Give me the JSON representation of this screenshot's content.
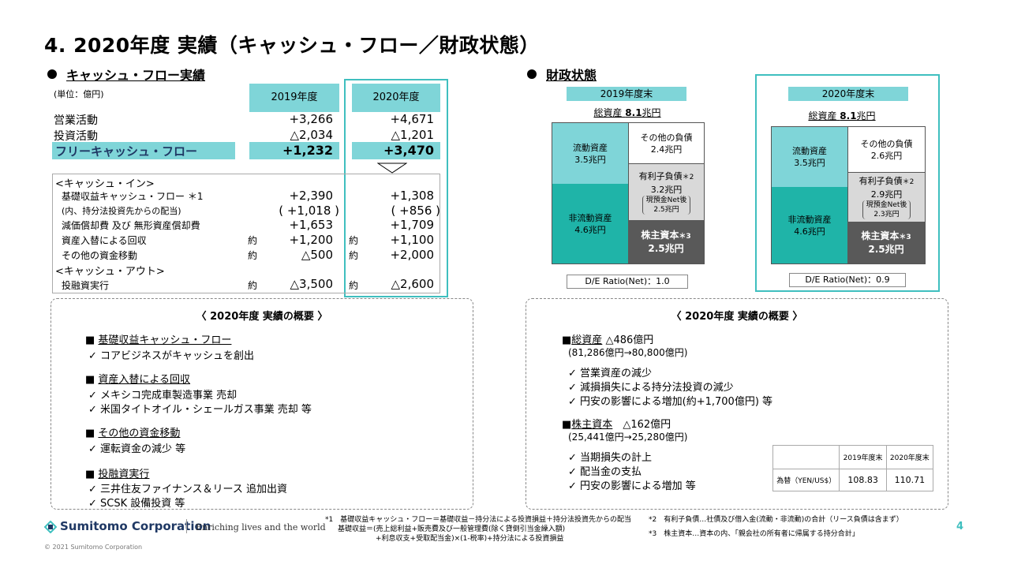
{
  "title": "4. 2020年度 実績（キャッシュ・フロー／財政状態）",
  "left": {
    "section": "キャッシュ・フロー実績",
    "unit": "(単位：億円)",
    "col_2019": "2019年度",
    "col_2020": "2020年度",
    "rows": [
      {
        "label": "営業活動",
        "v2019": "+3,266",
        "v2020": "+4,671"
      },
      {
        "label": "投資活動",
        "v2019": "△2,034",
        "v2020": "△1,201"
      }
    ],
    "fcf": {
      "label": "フリーキャッシュ・フロー",
      "v2019": "+1,232",
      "v2020": "+3,470"
    },
    "cash_in": "<キャッシュ・イン>",
    "in_rows": [
      {
        "label": "基礎収益キャッシュ・フロー ＊1",
        "p19": "",
        "v2019": "+2,390",
        "p20": "",
        "v2020": "+1,308"
      },
      {
        "label": "(内、持分法投資先からの配当)",
        "p19": "",
        "v2019": "( +1,018 )",
        "p20": "",
        "v2020": "( +856 )"
      },
      {
        "label": "減価償却費 及び 無形資産償却費",
        "p19": "",
        "v2019": "+1,653",
        "p20": "",
        "v2020": "+1,709"
      },
      {
        "label": "資産入替による回収",
        "p19": "約",
        "v2019": "+1,200",
        "p20": "約",
        "v2020": "+1,100"
      },
      {
        "label": "その他の資金移動",
        "p19": "約",
        "v2019": "△500",
        "p20": "約",
        "v2020": "+2,000"
      }
    ],
    "cash_out": "<キャッシュ・アウト>",
    "out_rows": [
      {
        "label": "投融資実行",
        "p19": "約",
        "v2019": "△3,500",
        "p20": "約",
        "v2020": "△2,600"
      }
    ],
    "summary": {
      "title": "〈 2020年度 実績の概要 〉",
      "groups": [
        {
          "head": "基礎収益キャッシュ・フロー",
          "items": [
            "✓ コアビジネスがキャッシュを創出"
          ]
        },
        {
          "head": "資産入替による回収",
          "items": [
            "✓ メキシコ完成車製造事業 売却",
            "✓ 米国タイトオイル・シェールガス事業 売却 等"
          ]
        },
        {
          "head": "その他の資金移動",
          "items": [
            "✓ 運転資金の減少 等"
          ]
        },
        {
          "head": "投融資実行",
          "items": [
            "✓ 三井住友ファイナンス＆リース 追加出資",
            "✓ SCSK 設備投資 等"
          ]
        }
      ]
    }
  },
  "right": {
    "section": "財政状態",
    "y2019": {
      "header": "2019年度末",
      "total_label": "総資産",
      "total_value": "8.1",
      "total_unit": "兆円",
      "current": "流動資産",
      "current_v": "3.5兆円",
      "noncurrent": "非流動資産",
      "noncurrent_v": "4.6兆円",
      "other_liab": "その他の負債",
      "other_liab_v": "2.4兆円",
      "debt": "有利子負債",
      "debt_mark": "＊2",
      "debt_v": "3.2兆円",
      "net_label": "現預金Net後",
      "net_v": "2.5兆円",
      "equity": "株主資本",
      "equity_mark": "＊3",
      "equity_v": "2.5兆円",
      "de": "D/E Ratio(Net)：1.0"
    },
    "y2020": {
      "header": "2020年度末",
      "total_label": "総資産",
      "total_value": "8.1",
      "total_unit": "兆円",
      "current": "流動資産",
      "current_v": "3.5兆円",
      "noncurrent": "非流動資産",
      "noncurrent_v": "4.6兆円",
      "other_liab": "その他の負債",
      "other_liab_v": "2.6兆円",
      "debt": "有利子負債",
      "debt_mark": "＊2",
      "debt_v": "2.9兆円",
      "net_label": "現預金Net後",
      "net_v": "2.3兆円",
      "equity": "株主資本",
      "equity_mark": "＊3",
      "equity_v": "2.5兆円",
      "de": "D/E Ratio(Net)：0.9"
    },
    "summary": {
      "title": "〈 2020年度 実績の概要 〉",
      "asset_head": "総資産",
      "asset_change": "△486億円",
      "asset_detail": "(81,286億円→80,800億円)",
      "asset_items": [
        "✓ 営業資産の減少",
        "✓ 減損損失による持分法投資の減少",
        "✓ 円安の影響による増加(約+1,700億円) 等"
      ],
      "equity_head": "株主資本",
      "equity_change": "△162億円",
      "equity_detail": "(25,441億円→25,280億円)",
      "equity_items": [
        "✓ 当期損失の計上",
        "✓ 配当金の支払",
        "✓ 円安の影響による増加 等"
      ]
    },
    "fx": {
      "h2019": "2019年度末",
      "h2020": "2020年度末",
      "label": "為替（YEN/US$）",
      "v2019": "108.83",
      "v2020": "110.71"
    }
  },
  "footnotes": {
    "n1a": "*1　基礎収益キャッシュ・フロー＝基礎収益－持分法による投資損益＋持分法投資先からの配当",
    "n1b": "基礎収益＝(売上総利益+販売費及び一般管理費(除く貸倒引当金繰入額)",
    "n1c": "+利息収支+受取配当金)×(1-税率)+持分法による投資損益",
    "n2": "*2　有利子負債…社債及び借入金(流動・非流動)の合計（リース負債は含まず）",
    "n3": "*3　株主資本…資本の内、「親会社の所有者に帰属する持分合計」"
  },
  "brand": {
    "logo": "Sumitomo Corporation",
    "tagline": "Enriching lives and the world",
    "page": "4",
    "copyright": "© 2021 Sumitomo Corporation"
  },
  "colors": {
    "accent": "#3fbfbf",
    "header_fill": "#7fd5d8",
    "teal_dark": "#1fb4a8",
    "teal_light": "#7fd5d8",
    "gray_dark": "#595959",
    "gray_light": "#d9d9d9"
  }
}
